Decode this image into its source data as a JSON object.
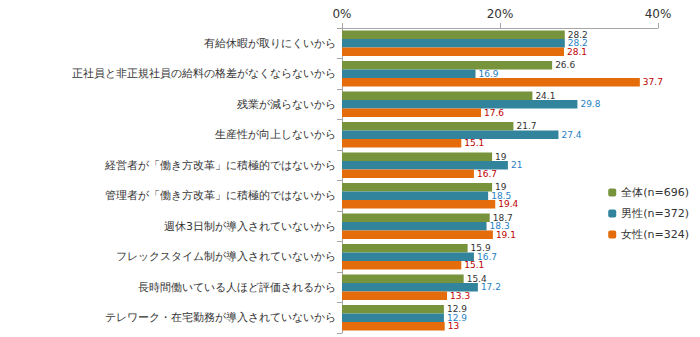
{
  "chart_data": {
    "type": "bar",
    "orientation": "horizontal",
    "categories": [
      "有給休暇が取りにくいから",
      "正社員と非正規社員の給料の格差がなくならないから",
      "残業が減らないから",
      "生産性が向上しないから",
      "経営者が「働き方改革」に積極的ではないから",
      "管理者が「働き方改革」に積極的ではないから",
      "週休3日制が導入されていないから",
      "フレックスタイム制が導入されていないから",
      "長時間働いている人ほど評価されるから",
      "テレワーク・在宅勤務が導入されていないから"
    ],
    "series": [
      {
        "name": "全体(n=696)",
        "color": "#77933c",
        "values": [
          28.2,
          26.6,
          24.1,
          21.7,
          19.0,
          19.0,
          18.7,
          15.9,
          15.4,
          12.9
        ]
      },
      {
        "name": "男性(n=372)",
        "color": "#31849b",
        "values": [
          28.2,
          16.9,
          29.8,
          27.4,
          21.0,
          18.5,
          18.3,
          16.7,
          17.2,
          12.9
        ]
      },
      {
        "name": "女性(n=324)",
        "color": "#e46c0a",
        "values": [
          28.1,
          37.7,
          17.6,
          15.1,
          16.7,
          19.4,
          19.1,
          15.1,
          13.3,
          13.0
        ]
      }
    ],
    "xlim": [
      0,
      40
    ],
    "xticks": [
      {
        "value": 0,
        "label": "0%"
      },
      {
        "value": 20,
        "label": "20%"
      },
      {
        "value": 40,
        "label": "40%"
      }
    ],
    "grid": false,
    "legend": "right",
    "data_labels": true
  }
}
